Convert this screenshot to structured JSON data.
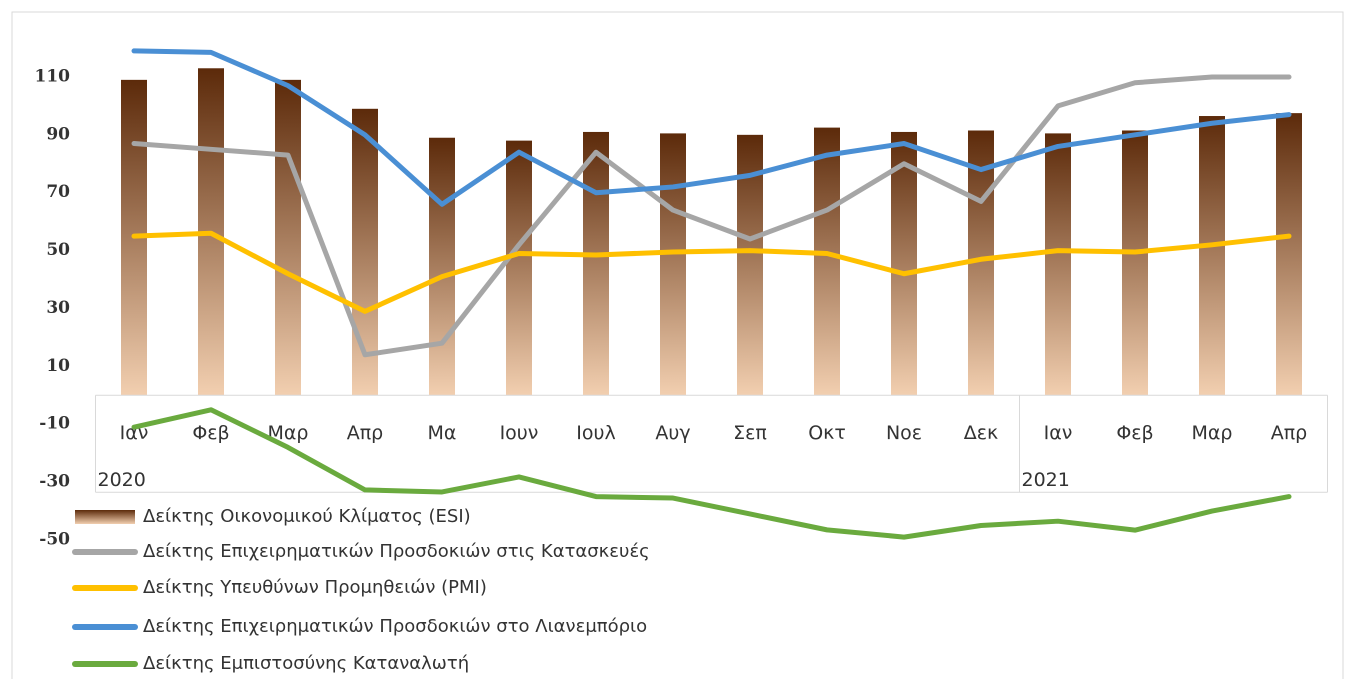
{
  "chart_data": {
    "type": "bar-line",
    "categories": [
      "Ιαν",
      "Φεβ",
      "Μαρ",
      "Απρ",
      "Μα",
      "Ιουν",
      "Ιουλ",
      "Αυγ",
      "Σεπ",
      "Οκτ",
      "Νοε",
      "Δεκ",
      "Ιαν",
      "Φεβ",
      "Μαρ",
      "Απρ"
    ],
    "groups": [
      {
        "label": "2020",
        "start": 0,
        "count": 12
      },
      {
        "label": "2021",
        "start": 12,
        "count": 4
      }
    ],
    "ylim": [
      -50,
      125
    ],
    "yticks": [
      -50,
      -30,
      -10,
      10,
      30,
      50,
      70,
      90,
      110
    ],
    "grid": false,
    "series": [
      {
        "name": "Δείκτης Οικονομικού Κλίματος (ESI)",
        "type": "bar",
        "color": "#7a3a12",
        "gradient": [
          "#5c2a0a",
          "#f2cfb0"
        ],
        "values": [
          109,
          113,
          109,
          99,
          89,
          88,
          91,
          90.5,
          90,
          92.5,
          91,
          91.5,
          90.5,
          91.5,
          96.5,
          97.5
        ]
      },
      {
        "name": "Δείκτης Επιχειρηματικών Προσδοκιών στις Κατασκευές",
        "type": "line",
        "color": "#a6a6a6",
        "values": [
          87,
          85,
          83,
          14,
          18,
          52,
          84,
          64,
          54,
          64,
          80,
          67,
          100,
          108,
          110,
          110
        ]
      },
      {
        "name": "Δείκτης Υπευθύνων Προμηθειών (PMI)",
        "type": "line",
        "color": "#ffc000",
        "values": [
          55,
          56,
          42,
          29,
          41,
          49,
          48.5,
          49.5,
          50,
          49,
          42,
          47,
          50,
          49.5,
          52,
          55
        ]
      },
      {
        "name": "Δείκτης Επιχειρηματικών Προσδοκιών στο Λιανεμπόριο",
        "type": "line",
        "color": "#4a8fd4",
        "values": [
          119,
          118.5,
          107,
          90,
          66,
          84,
          70,
          72,
          76,
          83,
          87,
          78,
          86,
          90,
          94,
          97
        ]
      },
      {
        "name": "Δείκτης Εμπιστοσύνης Καταναλωτή",
        "type": "line",
        "color": "#6aaa3e",
        "values": [
          -11,
          -5,
          -18,
          -32.7,
          -33.4,
          -28.2,
          -35,
          -35.5,
          -41,
          -46.5,
          -49,
          -45,
          -43.5,
          -46.6,
          -40,
          -35
        ]
      }
    ]
  }
}
